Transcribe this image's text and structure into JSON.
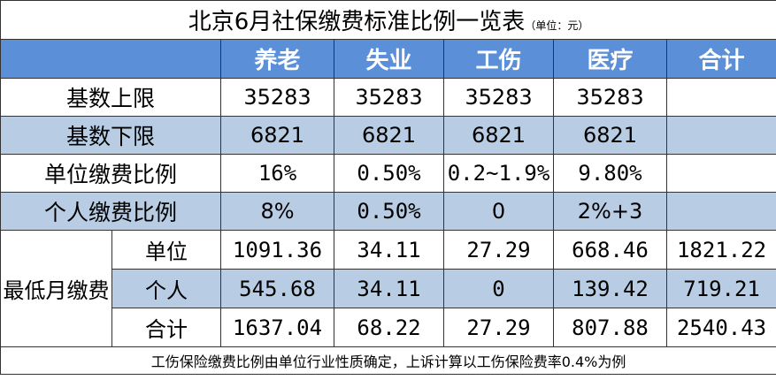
{
  "title": "北京6月社保缴费标准比例一览表",
  "unit_note": "（单位：元）",
  "headers": [
    "",
    "养老",
    "失业",
    "工伤",
    "医疗",
    "合计"
  ],
  "rows": [
    {
      "label": "基数上限",
      "values": [
        "35283",
        "35283",
        "35283",
        "35283",
        ""
      ]
    },
    {
      "label": "基数下限",
      "values": [
        "6821",
        "6821",
        "6821",
        "6821",
        ""
      ]
    },
    {
      "label": "单位缴费比例",
      "values": [
        "16%",
        "0.50%",
        "0.2~1.9%",
        "9.80%",
        ""
      ]
    },
    {
      "label": "个人缴费比例",
      "values": [
        "8%",
        "0.50%",
        "0",
        "2%+3",
        ""
      ]
    }
  ],
  "min_monthly": {
    "label": "最低月缴费",
    "rows": [
      {
        "label": "单位",
        "values": [
          "1091.36",
          "34.11",
          "27.29",
          "668.46",
          "1821.22"
        ]
      },
      {
        "label": "个人",
        "values": [
          "545.68",
          "34.11",
          "0",
          "139.42",
          "719.21"
        ]
      },
      {
        "label": "合计",
        "values": [
          "1637.04",
          "68.22",
          "27.29",
          "807.88",
          "2540.43"
        ]
      }
    ]
  },
  "footer": "工伤保险缴费比例由单位行业性质确定，上诉计算以工伤保险费率0.4%为例",
  "colors": {
    "header_bg": "#5b8fd8",
    "stripe_bg": "#b8cce4",
    "border": "#333333"
  }
}
